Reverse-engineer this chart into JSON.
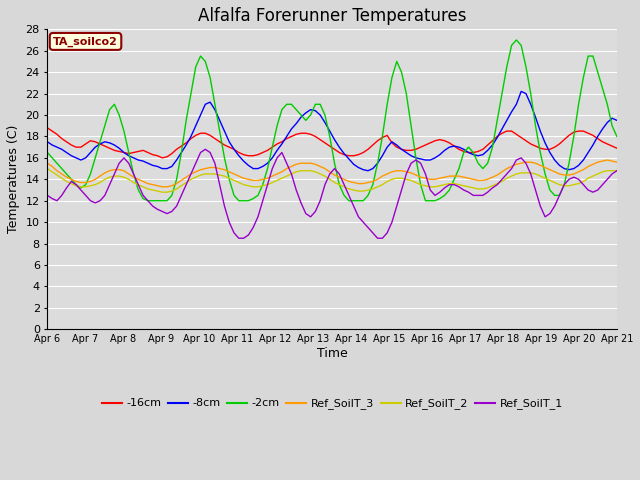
{
  "title": "Alfalfa Forerunner Temperatures",
  "ylabel": "Temperatures (C)",
  "xlabel": "Time",
  "annotation": "TA_soilco2",
  "ylim": [
    0,
    28
  ],
  "yticks": [
    0,
    2,
    4,
    6,
    8,
    10,
    12,
    14,
    16,
    18,
    20,
    22,
    24,
    26,
    28
  ],
  "xtick_labels": [
    "Apr 6",
    "Apr 7",
    "Apr 8",
    "Apr 9",
    "Apr 10",
    "Apr 11",
    "Apr 12",
    "Apr 13",
    "Apr 14",
    "Apr 15",
    "Apr 16",
    "Apr 17",
    "Apr 18",
    "Apr 19",
    "Apr 20",
    "Apr 21"
  ],
  "colors": {
    "-16cm": "#ff0000",
    "-8cm": "#0000ff",
    "-2cm": "#00cc00",
    "Ref_SoilT_3": "#ff9900",
    "Ref_SoilT_2": "#cccc00",
    "Ref_SoilT_1": "#9900cc"
  },
  "background_color": "#dcdcdc",
  "grid_color": "#ffffff",
  "title_fontsize": 12,
  "axis_fontsize": 9,
  "legend_fontsize": 8,
  "neg16": [
    18.8,
    18.5,
    18.2,
    17.8,
    17.5,
    17.2,
    17.0,
    17.0,
    17.3,
    17.6,
    17.5,
    17.3,
    17.1,
    16.9,
    16.7,
    16.6,
    16.5,
    16.4,
    16.5,
    16.6,
    16.7,
    16.5,
    16.3,
    16.2,
    16.0,
    16.1,
    16.4,
    16.8,
    17.1,
    17.4,
    17.8,
    18.1,
    18.3,
    18.3,
    18.1,
    17.8,
    17.5,
    17.2,
    17.0,
    16.8,
    16.5,
    16.3,
    16.2,
    16.2,
    16.3,
    16.5,
    16.7,
    17.0,
    17.3,
    17.5,
    17.8,
    18.0,
    18.2,
    18.3,
    18.3,
    18.2,
    18.0,
    17.7,
    17.4,
    17.1,
    16.8,
    16.5,
    16.3,
    16.2,
    16.2,
    16.3,
    16.5,
    16.8,
    17.2,
    17.6,
    17.9,
    18.1,
    17.4,
    17.0,
    16.8,
    16.7,
    16.7,
    16.8,
    17.0,
    17.2,
    17.4,
    17.6,
    17.7,
    17.6,
    17.4,
    17.1,
    16.8,
    16.6,
    16.5,
    16.5,
    16.6,
    16.8,
    17.2,
    17.6,
    18.0,
    18.3,
    18.5,
    18.5,
    18.2,
    17.9,
    17.6,
    17.3,
    17.1,
    16.9,
    16.8,
    16.8,
    17.0,
    17.3,
    17.7,
    18.1,
    18.4,
    18.5,
    18.5,
    18.3,
    18.1,
    17.8,
    17.5,
    17.3,
    17.1,
    16.9
  ],
  "neg8": [
    17.5,
    17.2,
    17.0,
    16.8,
    16.5,
    16.2,
    16.0,
    15.8,
    16.0,
    16.5,
    17.0,
    17.3,
    17.5,
    17.4,
    17.2,
    16.9,
    16.5,
    16.2,
    16.0,
    15.8,
    15.7,
    15.5,
    15.3,
    15.2,
    15.0,
    15.0,
    15.2,
    15.8,
    16.5,
    17.2,
    18.0,
    19.0,
    20.0,
    21.0,
    21.2,
    20.5,
    19.5,
    18.5,
    17.5,
    16.8,
    16.2,
    15.7,
    15.3,
    15.0,
    15.0,
    15.2,
    15.5,
    16.0,
    16.7,
    17.3,
    18.0,
    18.7,
    19.2,
    19.8,
    20.2,
    20.5,
    20.4,
    20.0,
    19.3,
    18.5,
    17.7,
    17.0,
    16.4,
    15.9,
    15.4,
    15.1,
    14.9,
    14.8,
    15.0,
    15.5,
    16.2,
    17.0,
    17.5,
    17.2,
    16.8,
    16.5,
    16.2,
    16.0,
    15.9,
    15.8,
    15.8,
    16.0,
    16.3,
    16.7,
    17.0,
    17.1,
    17.0,
    16.8,
    16.5,
    16.3,
    16.2,
    16.3,
    16.7,
    17.2,
    17.9,
    18.7,
    19.5,
    20.3,
    21.0,
    22.2,
    22.0,
    21.0,
    19.8,
    18.5,
    17.4,
    16.5,
    15.8,
    15.3,
    15.0,
    14.9,
    15.0,
    15.3,
    15.8,
    16.5,
    17.2,
    18.0,
    18.7,
    19.3,
    19.7,
    19.5
  ],
  "neg2": [
    16.5,
    16.0,
    15.5,
    15.0,
    14.5,
    14.0,
    13.5,
    13.2,
    13.5,
    14.5,
    16.0,
    17.5,
    19.0,
    20.5,
    21.0,
    20.0,
    18.5,
    16.5,
    14.5,
    13.0,
    12.2,
    12.0,
    12.0,
    12.0,
    12.0,
    12.0,
    12.5,
    14.0,
    16.5,
    19.5,
    22.0,
    24.5,
    25.5,
    25.0,
    23.5,
    21.0,
    18.5,
    16.0,
    14.0,
    12.5,
    12.0,
    12.0,
    12.0,
    12.2,
    12.5,
    13.5,
    15.0,
    17.0,
    19.0,
    20.5,
    21.0,
    21.0,
    20.5,
    20.0,
    19.5,
    20.0,
    21.0,
    21.0,
    20.0,
    18.0,
    15.5,
    13.5,
    12.5,
    12.0,
    12.0,
    12.0,
    12.0,
    12.5,
    13.5,
    15.5,
    18.0,
    21.0,
    23.5,
    25.0,
    24.0,
    22.0,
    19.0,
    16.0,
    13.5,
    12.0,
    12.0,
    12.0,
    12.2,
    12.5,
    13.0,
    14.0,
    15.0,
    16.5,
    17.0,
    16.5,
    15.5,
    15.0,
    15.5,
    17.0,
    19.5,
    22.0,
    24.5,
    26.5,
    27.0,
    26.5,
    24.5,
    22.0,
    19.0,
    16.5,
    14.5,
    13.0,
    12.5,
    12.5,
    13.5,
    15.5,
    18.0,
    21.0,
    23.5,
    25.5,
    25.5,
    24.0,
    22.5,
    21.0,
    19.0,
    18.0
  ],
  "ref3": [
    15.5,
    15.2,
    14.8,
    14.5,
    14.2,
    14.0,
    13.8,
    13.7,
    13.7,
    13.8,
    14.0,
    14.3,
    14.6,
    14.8,
    14.9,
    14.9,
    14.8,
    14.5,
    14.2,
    14.0,
    13.8,
    13.6,
    13.5,
    13.4,
    13.3,
    13.3,
    13.4,
    13.6,
    13.9,
    14.2,
    14.5,
    14.7,
    14.9,
    15.0,
    15.1,
    15.1,
    15.0,
    14.9,
    14.7,
    14.5,
    14.3,
    14.1,
    14.0,
    13.9,
    13.9,
    14.0,
    14.1,
    14.3,
    14.5,
    14.7,
    15.0,
    15.2,
    15.4,
    15.5,
    15.5,
    15.5,
    15.4,
    15.2,
    15.0,
    14.7,
    14.4,
    14.2,
    14.0,
    13.8,
    13.7,
    13.6,
    13.6,
    13.7,
    13.8,
    14.0,
    14.3,
    14.5,
    14.7,
    14.8,
    14.8,
    14.7,
    14.6,
    14.4,
    14.2,
    14.1,
    14.0,
    14.0,
    14.1,
    14.2,
    14.3,
    14.3,
    14.3,
    14.2,
    14.1,
    14.0,
    13.9,
    13.9,
    14.0,
    14.2,
    14.4,
    14.7,
    15.0,
    15.2,
    15.4,
    15.5,
    15.6,
    15.6,
    15.5,
    15.3,
    15.1,
    14.9,
    14.7,
    14.5,
    14.4,
    14.4,
    14.5,
    14.7,
    14.9,
    15.2,
    15.4,
    15.6,
    15.7,
    15.8,
    15.7,
    15.6
  ],
  "ref2": [
    15.0,
    14.7,
    14.4,
    14.1,
    13.8,
    13.6,
    13.4,
    13.3,
    13.3,
    13.4,
    13.5,
    13.7,
    14.0,
    14.2,
    14.3,
    14.3,
    14.2,
    14.0,
    13.7,
    13.5,
    13.3,
    13.1,
    13.0,
    12.9,
    12.8,
    12.8,
    12.9,
    13.1,
    13.4,
    13.7,
    14.0,
    14.2,
    14.4,
    14.5,
    14.5,
    14.5,
    14.4,
    14.3,
    14.1,
    13.9,
    13.7,
    13.5,
    13.4,
    13.3,
    13.3,
    13.4,
    13.5,
    13.7,
    13.9,
    14.1,
    14.3,
    14.5,
    14.7,
    14.8,
    14.8,
    14.8,
    14.7,
    14.5,
    14.3,
    14.0,
    13.7,
    13.5,
    13.3,
    13.1,
    13.0,
    12.9,
    12.9,
    13.0,
    13.1,
    13.3,
    13.5,
    13.8,
    14.0,
    14.1,
    14.1,
    14.0,
    13.9,
    13.7,
    13.5,
    13.4,
    13.3,
    13.3,
    13.4,
    13.5,
    13.6,
    13.6,
    13.5,
    13.4,
    13.3,
    13.2,
    13.1,
    13.1,
    13.2,
    13.4,
    13.6,
    13.8,
    14.1,
    14.3,
    14.5,
    14.6,
    14.6,
    14.6,
    14.5,
    14.3,
    14.1,
    13.9,
    13.7,
    13.5,
    13.4,
    13.4,
    13.5,
    13.6,
    13.8,
    14.1,
    14.3,
    14.5,
    14.7,
    14.8,
    14.8,
    14.8
  ],
  "ref1": [
    12.5,
    12.2,
    12.0,
    12.5,
    13.2,
    13.8,
    13.5,
    13.0,
    12.5,
    12.0,
    11.8,
    12.0,
    12.5,
    13.5,
    14.5,
    15.5,
    16.0,
    15.5,
    14.5,
    13.5,
    12.5,
    12.0,
    11.5,
    11.2,
    11.0,
    10.8,
    11.0,
    11.5,
    12.5,
    13.5,
    14.5,
    15.5,
    16.5,
    16.8,
    16.5,
    15.5,
    13.5,
    11.5,
    10.0,
    9.0,
    8.5,
    8.5,
    8.8,
    9.5,
    10.5,
    12.0,
    13.5,
    15.0,
    16.0,
    16.5,
    15.5,
    14.5,
    13.0,
    11.8,
    10.8,
    10.5,
    11.0,
    12.0,
    13.5,
    14.5,
    15.0,
    14.5,
    13.5,
    12.5,
    11.5,
    10.5,
    10.0,
    9.5,
    9.0,
    8.5,
    8.5,
    9.0,
    10.0,
    11.5,
    13.0,
    14.5,
    15.5,
    15.8,
    15.5,
    14.5,
    13.0,
    12.5,
    12.8,
    13.2,
    13.5,
    13.5,
    13.3,
    13.0,
    12.8,
    12.5,
    12.5,
    12.5,
    12.8,
    13.2,
    13.5,
    14.0,
    14.5,
    15.0,
    15.8,
    16.0,
    15.5,
    14.5,
    13.0,
    11.5,
    10.5,
    10.8,
    11.5,
    12.5,
    13.5,
    14.0,
    14.2,
    14.0,
    13.5,
    13.0,
    12.8,
    13.0,
    13.5,
    14.0,
    14.5,
    14.8
  ]
}
